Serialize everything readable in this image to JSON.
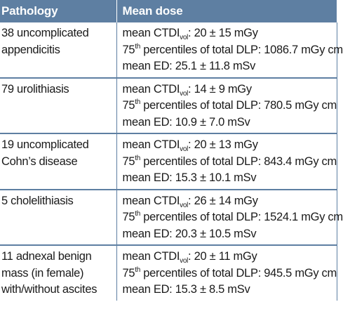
{
  "table": {
    "headers": [
      "Pathology",
      "Mean dose"
    ],
    "rows": [
      {
        "pathology": [
          "38 uncomplicated",
          "appendicitis"
        ],
        "ctdi": ": 20 ± 15 mGy",
        "dlp": " percentiles of total DLP: 1086.7 mGy cm",
        "ed": "mean ED: 25.1 ± 11.8 mSv"
      },
      {
        "pathology": [
          "79 urolithiasis"
        ],
        "ctdi": ": 14 ± 9 mGy",
        "dlp": " percentiles of total DLP: 780.5 mGy cm",
        "ed": "mean ED: 10.9 ± 7.0 mSv"
      },
      {
        "pathology": [
          "19 uncomplicated",
          "Cohn’s disease"
        ],
        "ctdi": ": 20 ± 13 mGy",
        "dlp": " percentiles of total DLP: 843.4 mGy cm",
        "ed": "mean ED: 15.3 ± 10.1 mSv"
      },
      {
        "pathology": [
          "5 cholelithiasis"
        ],
        "ctdi": ": 26 ± 14 mGy",
        "dlp": " percentiles of total DLP: 1524.1 mGy cm",
        "ed": "mean ED: 20.3 ± 10.5 mSv"
      },
      {
        "pathology": [
          "11 adnexal benign",
          "mass (in female)",
          "with/without ascites"
        ],
        "ctdi": ": 20 ± 11 mGy",
        "dlp": " percentiles of total DLP: 945.5 mGy cm",
        "ed": "mean ED: 15.3 ± 8.5 mSv"
      }
    ]
  },
  "labels": {
    "ctdi_prefix": "mean CTDI",
    "ctdi_sub": "vol",
    "dlp_prefix": "75",
    "dlp_sup": "th"
  },
  "colors": {
    "header_bg": "#5e7fa2",
    "header_text": "#ffffff",
    "rule": "#5e7fa2",
    "body_text": "#1a1a1a"
  }
}
